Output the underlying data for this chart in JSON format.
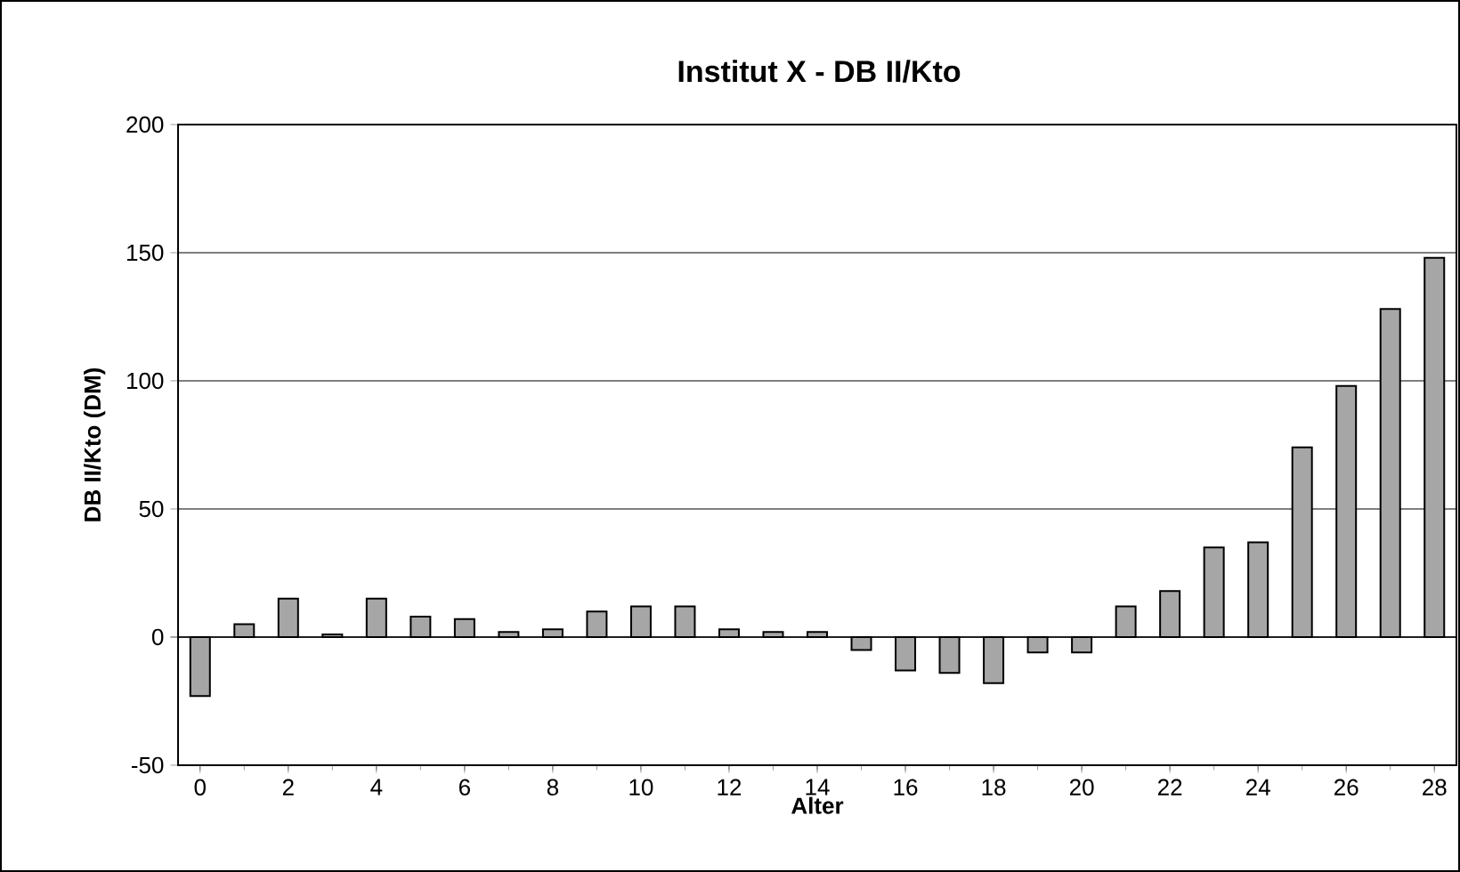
{
  "chart_data": {
    "type": "bar",
    "title": "Institut X - DB II/Kto",
    "xlabel": "Alter",
    "ylabel": "DB II/Kto (DM)",
    "x": [
      0,
      1,
      2,
      3,
      4,
      5,
      6,
      7,
      8,
      9,
      10,
      11,
      12,
      13,
      14,
      15,
      16,
      17,
      18,
      19,
      20,
      21,
      22,
      23,
      24,
      25,
      26,
      27,
      28
    ],
    "values": [
      -23,
      5,
      15,
      1,
      15,
      8,
      7,
      2,
      3,
      10,
      12,
      12,
      3,
      2,
      2,
      -5,
      -13,
      -14,
      -18,
      -6,
      -6,
      12,
      18,
      35,
      37,
      74,
      98,
      128,
      148
    ],
    "color": "#a6a6a6",
    "xlim": [
      -0.5,
      28.5
    ],
    "xticks": [
      0,
      2,
      4,
      6,
      8,
      10,
      12,
      14,
      16,
      18,
      20,
      22,
      24,
      26,
      28
    ],
    "ylim": [
      -50,
      200
    ],
    "yticks": [
      -50,
      0,
      50,
      100,
      150,
      200
    ],
    "grid": "y"
  }
}
